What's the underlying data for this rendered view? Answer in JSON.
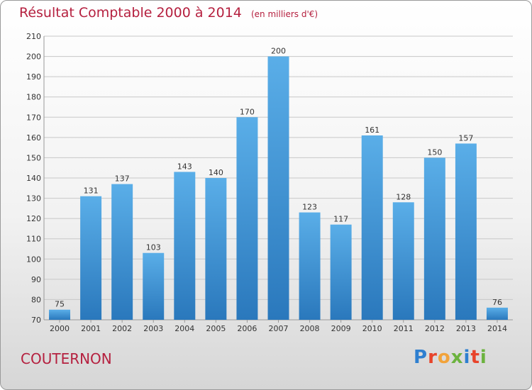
{
  "title": {
    "main": "Résultat Comptable 2000 à 2014",
    "unit": "(en milliers d'€)"
  },
  "location": "COUTERNON",
  "brand": {
    "text": "Proxiti",
    "colors": [
      "#2e7fd0",
      "#e8442b",
      "#f2a33a",
      "#6cb33f",
      "#2e7fd0",
      "#e8442b",
      "#6cb33f"
    ]
  },
  "colors": {
    "bar_top": "#5aaee8",
    "bar_bottom": "#2a78bc",
    "grid": "#c8c8c8",
    "text": "#333333",
    "accent": "#b5203f"
  },
  "chart_data": {
    "type": "bar",
    "title": "Résultat Comptable 2000 à 2014",
    "ylabel": "en milliers d'€",
    "xlabel": "",
    "categories": [
      "2000",
      "2001",
      "2002",
      "2003",
      "2004",
      "2005",
      "2006",
      "2007",
      "2008",
      "2009",
      "2010",
      "2011",
      "2012",
      "2013",
      "2014"
    ],
    "values": [
      75,
      131,
      137,
      103,
      143,
      140,
      170,
      200,
      123,
      117,
      161,
      128,
      150,
      157,
      76
    ],
    "ylim": [
      70,
      210
    ],
    "yticks": [
      70,
      80,
      90,
      100,
      110,
      120,
      130,
      140,
      150,
      160,
      170,
      180,
      190,
      200,
      210
    ],
    "grid": true,
    "data_labels": true
  }
}
